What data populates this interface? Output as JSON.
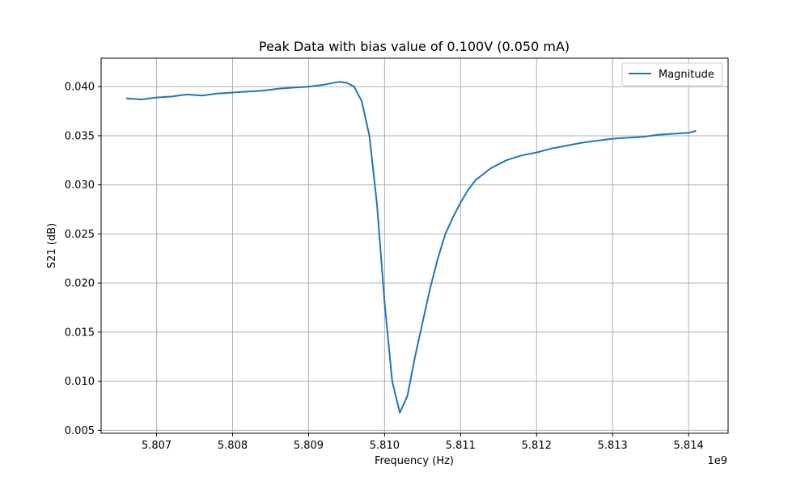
{
  "chart_data": {
    "type": "line",
    "title": "Peak Data with bias value of 0.100V (0.050 mA)",
    "xlabel": "Frequency (Hz)",
    "ylabel": "S21 (dB)",
    "x_offset_label": "1e9",
    "xlim": [
      5.80627,
      5.81452
    ],
    "ylim": [
      0.0047,
      0.0429
    ],
    "x_ticks": [
      5.807,
      5.808,
      5.809,
      5.81,
      5.811,
      5.812,
      5.813,
      5.814
    ],
    "x_tick_labels": [
      "5.807",
      "5.808",
      "5.809",
      "5.810",
      "5.811",
      "5.812",
      "5.813",
      "5.814"
    ],
    "y_ticks": [
      0.005,
      0.01,
      0.015,
      0.02,
      0.025,
      0.03,
      0.035,
      0.04
    ],
    "y_tick_labels": [
      "0.005",
      "0.010",
      "0.015",
      "0.020",
      "0.025",
      "0.030",
      "0.035",
      "0.040"
    ],
    "grid": true,
    "legend_position": "top-right",
    "color": "#1f77b4",
    "series": [
      {
        "name": "Magnitude",
        "x": [
          5.8066,
          5.8068,
          5.807,
          5.8072,
          5.8074,
          5.8076,
          5.8078,
          5.808,
          5.8082,
          5.8084,
          5.8086,
          5.8088,
          5.809,
          5.8092,
          5.8094,
          5.8095,
          5.8096,
          5.8097,
          5.8098,
          5.8099,
          5.81,
          5.8101,
          5.8102,
          5.8103,
          5.8104,
          5.8105,
          5.8106,
          5.8107,
          5.8108,
          5.8109,
          5.811,
          5.8111,
          5.8112,
          5.8114,
          5.8116,
          5.8118,
          5.812,
          5.8122,
          5.8124,
          5.8126,
          5.8128,
          5.813,
          5.8132,
          5.8134,
          5.8136,
          5.8138,
          5.814,
          5.8141
        ],
        "y": [
          0.0388,
          0.0387,
          0.0389,
          0.039,
          0.0392,
          0.0391,
          0.0393,
          0.0394,
          0.0395,
          0.0396,
          0.0398,
          0.0399,
          0.04,
          0.0402,
          0.0405,
          0.0404,
          0.04,
          0.0385,
          0.035,
          0.028,
          0.018,
          0.01,
          0.0068,
          0.0085,
          0.0125,
          0.016,
          0.0195,
          0.0225,
          0.025,
          0.0267,
          0.0282,
          0.0295,
          0.0305,
          0.0317,
          0.0325,
          0.033,
          0.0333,
          0.0337,
          0.034,
          0.0343,
          0.0345,
          0.0347,
          0.0348,
          0.0349,
          0.0351,
          0.0352,
          0.0353,
          0.0355
        ]
      }
    ]
  }
}
